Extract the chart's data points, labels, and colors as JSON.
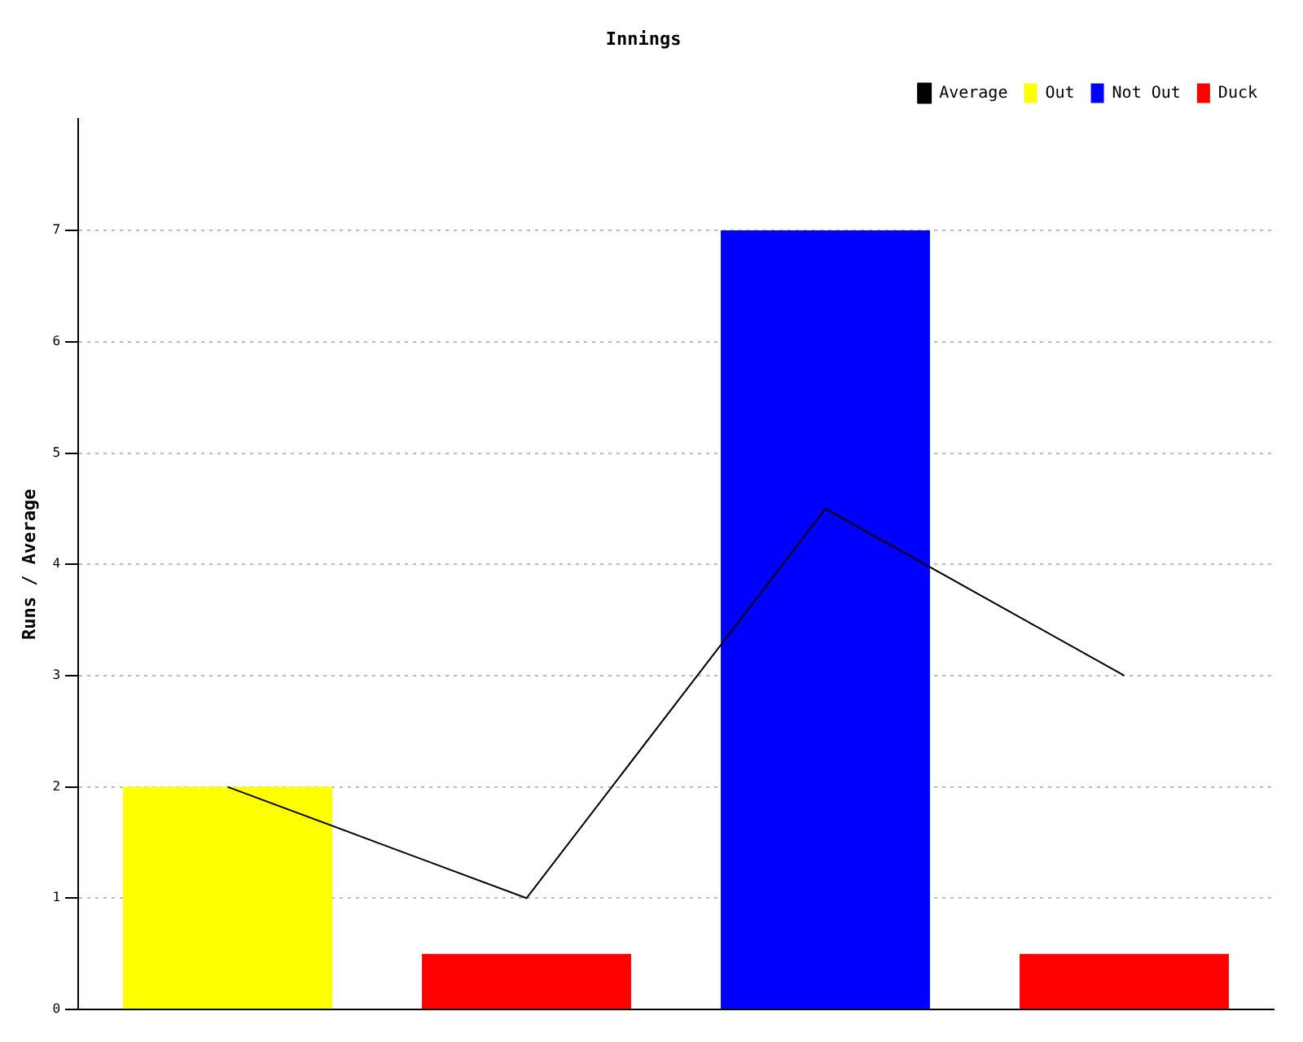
{
  "chart_data": {
    "type": "bar",
    "title": "Innings",
    "ylabel": "Runs / Average",
    "categories": [
      null,
      null,
      null,
      null
    ],
    "series": [
      {
        "name": "Average",
        "type": "line",
        "color": "#000000",
        "values": [
          2,
          1,
          4.5,
          3
        ]
      },
      {
        "name": "Out",
        "color": "#ffff00",
        "values": [
          2,
          null,
          null,
          null
        ]
      },
      {
        "name": "Not Out",
        "color": "#0000ff",
        "values": [
          null,
          null,
          7,
          null
        ]
      },
      {
        "name": "Duck",
        "color": "#ff0000",
        "values": [
          null,
          0.5,
          null,
          0.5
        ]
      }
    ],
    "stacked": true,
    "ylim": [
      0,
      8
    ],
    "yticks": [
      0,
      1,
      2,
      3,
      4,
      5,
      6,
      7
    ],
    "grid": "y",
    "legend": "top right",
    "marker": "none"
  }
}
